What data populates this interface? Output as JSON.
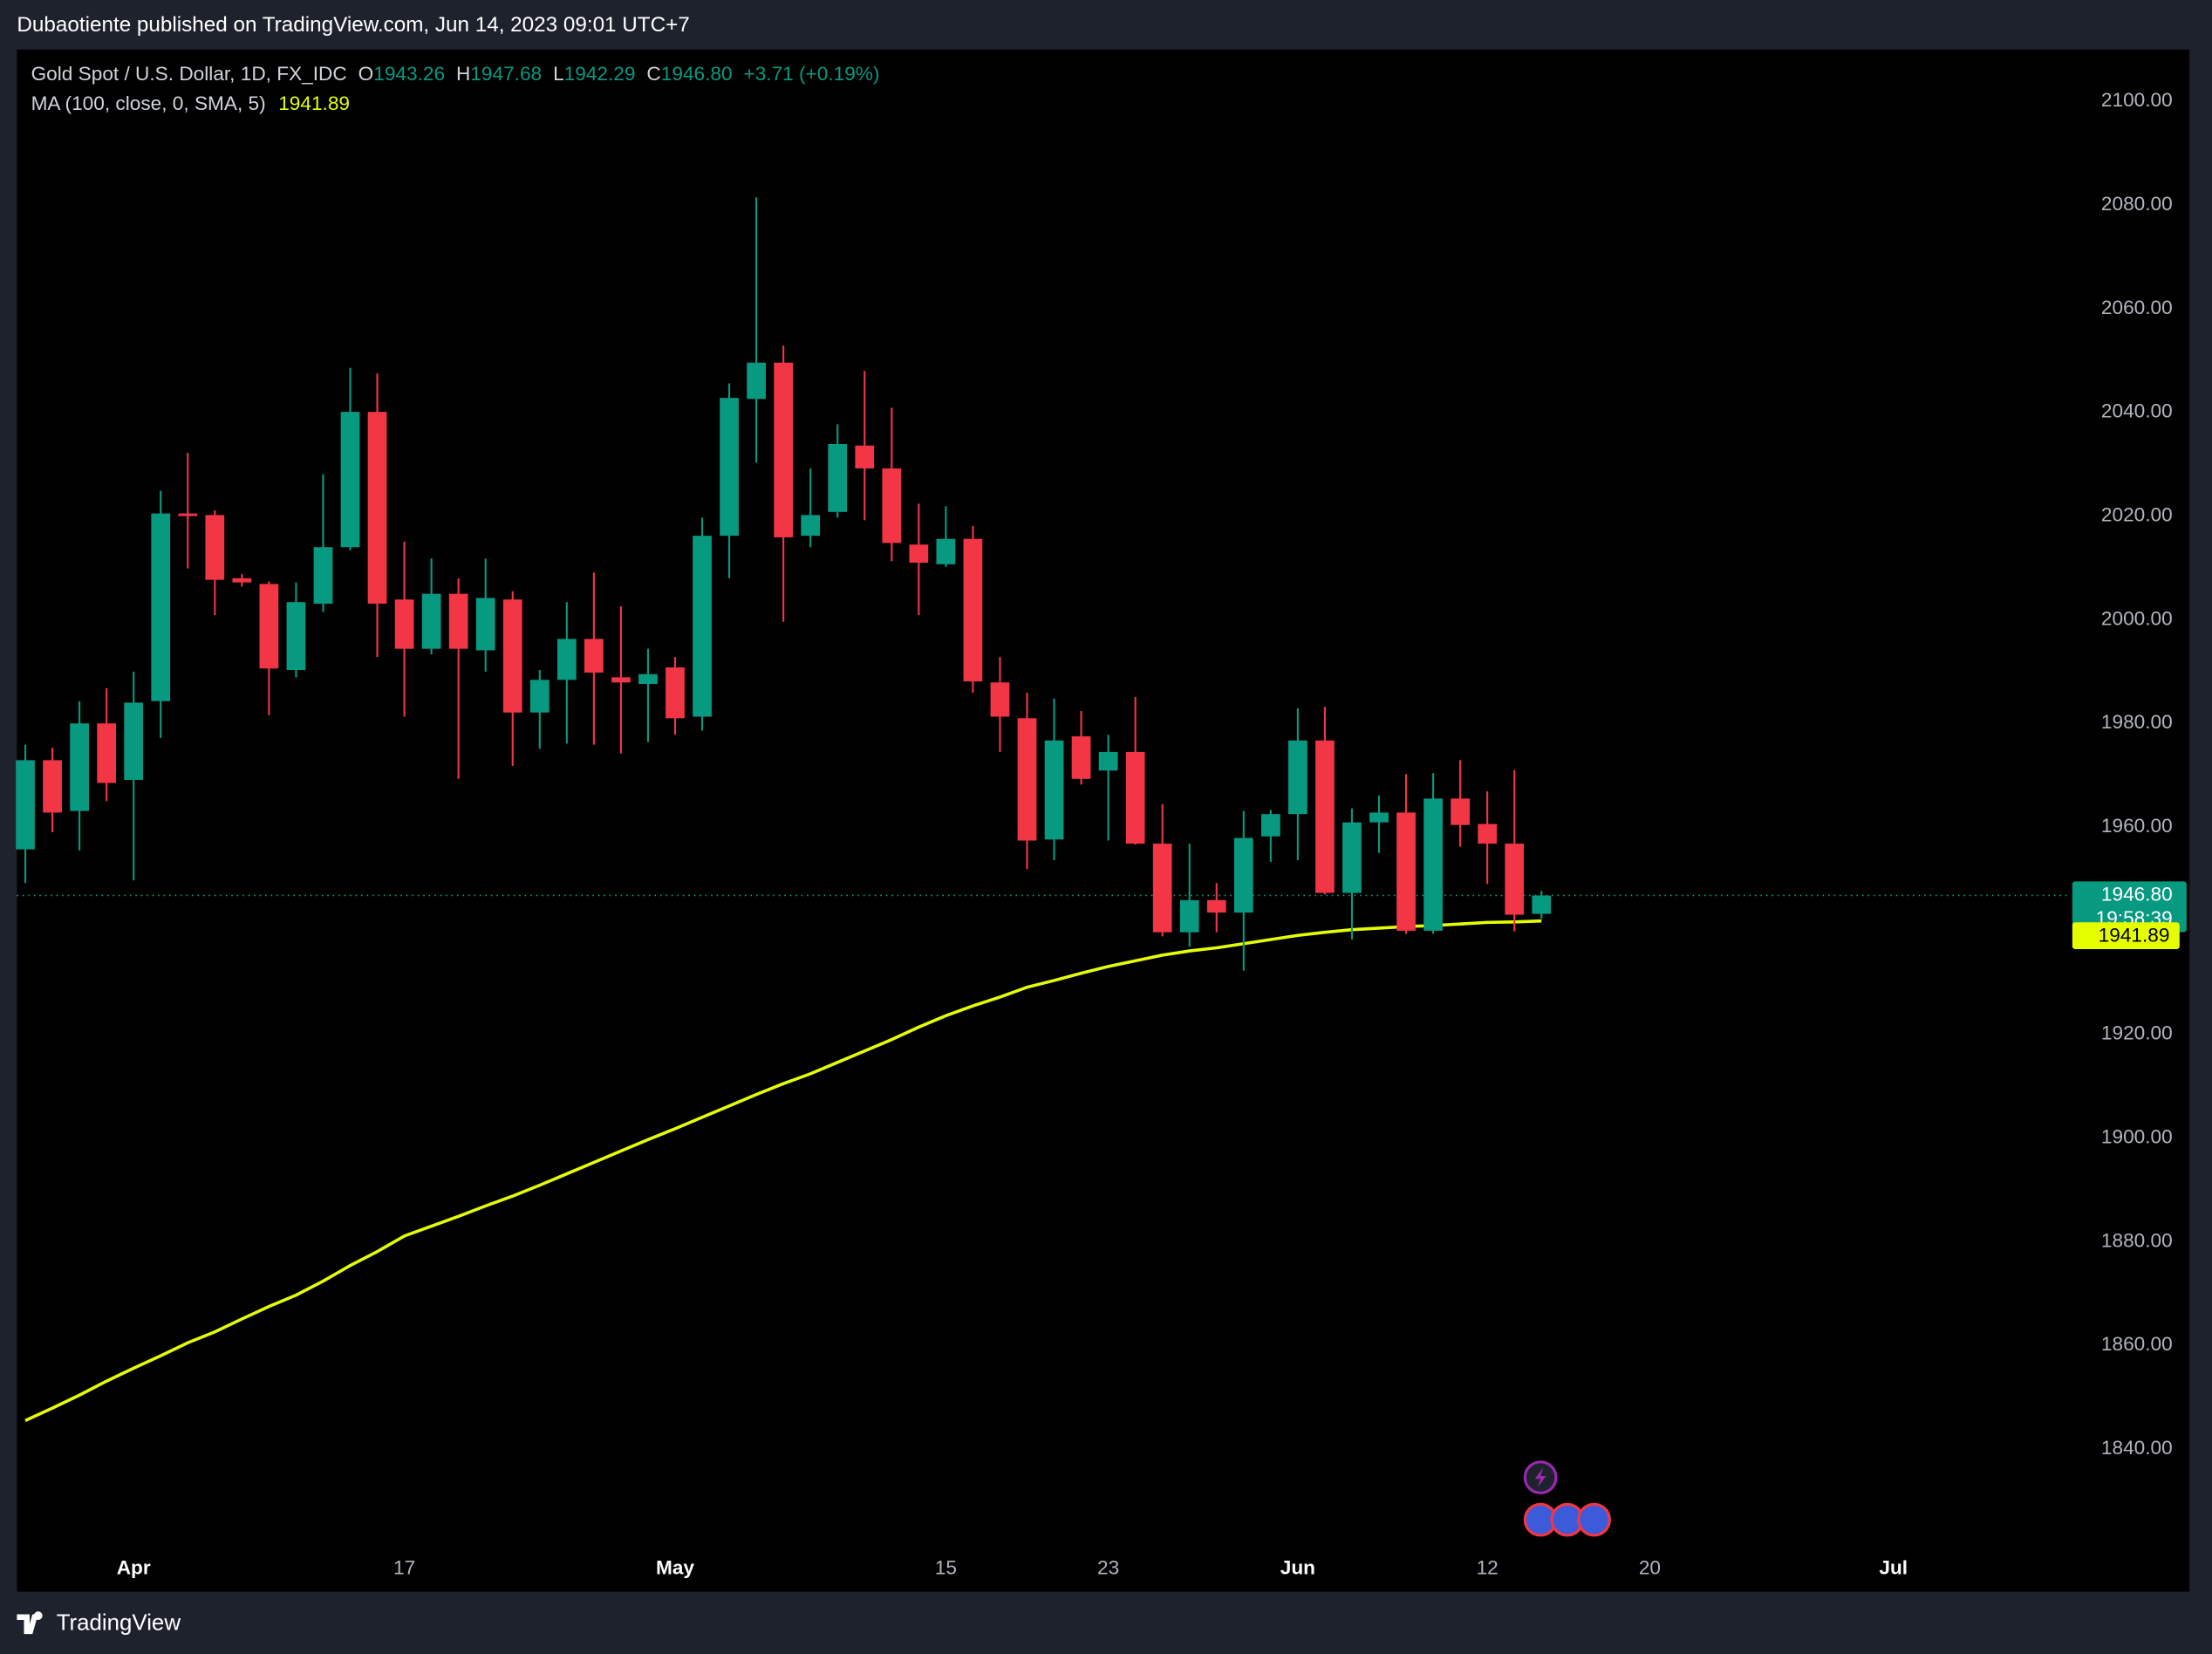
{
  "header": {
    "publisher": "Dubaotiente published on TradingView.com, Jun 14, 2023 09:01 UTC+7"
  },
  "chart_data": {
    "type": "candlestick",
    "title": "Gold Spot / U.S. Dollar, 1D, FX_IDC",
    "legend": {
      "ohlc_labels": [
        "O",
        "H",
        "L",
        "C"
      ],
      "ohlc_values": [
        "1943.26",
        "1947.68",
        "1942.29",
        "1946.80"
      ],
      "change": "+3.71 (+0.19%)",
      "countdown": "19:58:39",
      "ma_value": "1941.89"
    },
    "up_color": "#089981",
    "down_color": "#f23645",
    "open": [
      1955.7,
      1972.9,
      1963.1,
      1980.0,
      1969.1,
      1984.3,
      2020.5,
      2020.2,
      2008.0,
      2006.9,
      1990.3,
      2003.1,
      2014.0,
      2040.1,
      2003.9,
      1994.4,
      2005.0,
      1994.1,
      2003.9,
      1982.1,
      1988.4,
      1996.3,
      1988.9,
      1987.6,
      1990.8,
      1981.3,
      2016.2,
      2042.6,
      2049.6,
      2016.2,
      2020.8,
      2033.6,
      2029.2,
      2014.5,
      2010.7,
      2015.6,
      1987.9,
      1981.0,
      1957.6,
      1977.5,
      1970.9,
      1974.5,
      1956.8,
      1939.7,
      1945.9,
      1943.5,
      1958.2,
      1962.5,
      1976.7,
      1947.3,
      1960.9,
      1962.8,
      1940.0,
      1965.5,
      1960.6,
      1956.8,
      1943.26
    ],
    "high": [
      1975.9,
      1975.3,
      1984.3,
      1986.8,
      1990.0,
      2024.9,
      2032.2,
      2021.1,
      2008.8,
      2007.4,
      2007.2,
      2028.1,
      2048.6,
      2047.5,
      2015.1,
      2011.8,
      2008.0,
      2011.8,
      2005.5,
      1990.3,
      2003.4,
      2009.1,
      2002.6,
      1994.4,
      1992.8,
      2019.7,
      2045.6,
      2081.5,
      2052.9,
      2029.2,
      2037.7,
      2048.0,
      2040.9,
      2022.4,
      2021.9,
      2018.1,
      1992.8,
      1985.9,
      1984.8,
      1982.4,
      1977.8,
      1985.1,
      1964.4,
      1956.8,
      1949.2,
      1963.1,
      1963.3,
      1982.9,
      1983.2,
      1963.6,
      1966.1,
      1970.2,
      1970.4,
      1972.9,
      1966.9,
      1971.0,
      1947.68
    ],
    "low": [
      1949.2,
      1959.0,
      1955.5,
      1965.0,
      1949.7,
      1977.2,
      2009.9,
      2000.9,
      2006.4,
      1981.6,
      1988.9,
      2001.5,
      2013.4,
      1992.8,
      1981.3,
      1993.3,
      1969.3,
      1990.0,
      1971.8,
      1975.1,
      1976.1,
      1975.9,
      1974.2,
      1976.4,
      1977.8,
      1978.6,
      2008.0,
      2030.3,
      1999.6,
      2014.0,
      2019.7,
      2019.2,
      2011.3,
      2000.9,
      2010.2,
      1985.9,
      1974.5,
      1951.9,
      1953.6,
      1968.2,
      1957.4,
      1956.6,
      1938.9,
      1936.9,
      1939.7,
      1932.3,
      1953.3,
      1953.6,
      1947.0,
      1938.3,
      1955.0,
      1939.4,
      1939.4,
      1956.2,
      1949.0,
      1939.9,
      1942.29
    ],
    "close": [
      1972.9,
      1962.8,
      1980.0,
      1968.5,
      1984.0,
      2020.5,
      2020.0,
      2007.7,
      2007.2,
      1990.6,
      2003.4,
      2014.0,
      2040.1,
      2003.1,
      1994.4,
      2005.0,
      1994.4,
      2004.2,
      1982.1,
      1988.4,
      1996.3,
      1989.8,
      1987.9,
      1989.5,
      1981.0,
      2016.2,
      2042.8,
      2049.6,
      2015.9,
      2020.2,
      2033.9,
      2029.2,
      2014.8,
      2011.0,
      2015.6,
      1988.1,
      1981.3,
      1957.4,
      1976.7,
      1969.3,
      1974.5,
      1956.8,
      1939.7,
      1945.9,
      1943.5,
      1957.9,
      1962.5,
      1976.7,
      1947.3,
      1960.9,
      1962.8,
      1940.0,
      1965.5,
      1960.4,
      1956.8,
      1943.09,
      1946.8
    ],
    "indicators": [
      {
        "type": "line",
        "name": "MA (100, close, 0, SMA, 5)",
        "color": "#e5ff00",
        "values": [
          1845.5,
          1847.9,
          1850.4,
          1853.1,
          1855.6,
          1858.0,
          1860.5,
          1862.6,
          1865.1,
          1867.5,
          1869.7,
          1872.4,
          1875.4,
          1878.1,
          1881.1,
          1883.0,
          1884.9,
          1886.9,
          1888.8,
          1890.9,
          1893.1,
          1895.3,
          1897.5,
          1899.7,
          1901.8,
          1904.0,
          1906.2,
          1908.4,
          1910.5,
          1912.4,
          1914.6,
          1916.8,
          1919.0,
          1921.4,
          1923.6,
          1925.5,
          1927.2,
          1929.1,
          1930.4,
          1931.8,
          1933.1,
          1934.2,
          1935.3,
          1936.1,
          1936.7,
          1937.5,
          1938.3,
          1939.1,
          1939.7,
          1940.2,
          1940.5,
          1940.8,
          1941.0,
          1941.3,
          1941.6,
          1941.7,
          1941.89
        ]
      }
    ],
    "xlim": [
      -0.31,
      75.4
    ],
    "xticks": [
      {
        "value": 4,
        "label": "Apr"
      },
      {
        "value": 14,
        "label": "17"
      },
      {
        "value": 24,
        "label": "May"
      },
      {
        "value": 34,
        "label": "15"
      },
      {
        "value": 40,
        "label": "23"
      },
      {
        "value": 47,
        "label": "Jun"
      },
      {
        "value": 54,
        "label": "12"
      },
      {
        "value": 60,
        "label": "20"
      },
      {
        "value": 69,
        "label": "Jul"
      }
    ],
    "ylim": [
      1822,
      2110
    ],
    "yticks": [
      {
        "value": 1840,
        "label": "1840.00"
      },
      {
        "value": 1860,
        "label": "1860.00"
      },
      {
        "value": 1880,
        "label": "1880.00"
      },
      {
        "value": 1900,
        "label": "1900.00"
      },
      {
        "value": 1920,
        "label": "1920.00"
      },
      {
        "value": 1960,
        "label": "1960.00"
      },
      {
        "value": 1980,
        "label": "1980.00"
      },
      {
        "value": 2000,
        "label": "2000.00"
      },
      {
        "value": 2020,
        "label": "2020.00"
      },
      {
        "value": 2040,
        "label": "2040.00"
      },
      {
        "value": 2060,
        "label": "2060.00"
      },
      {
        "value": 2080,
        "label": "2080.00"
      },
      {
        "value": 2100,
        "label": "2100.00"
      }
    ],
    "grid": false
  },
  "footer": {
    "brand": "TradingView"
  }
}
